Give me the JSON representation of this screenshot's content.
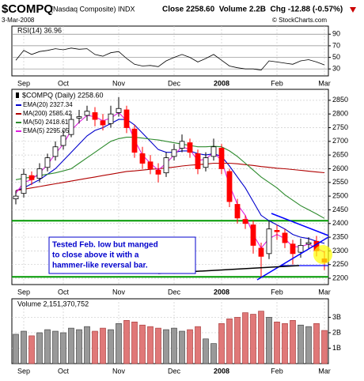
{
  "header": {
    "symbol": "$COMPQ",
    "name": "(Nasdaq Composite) INDX",
    "date": "3-Mar-2008",
    "quote": "Close 2258.60  Volume 2.2B  Chg -12.88 (-0.57%)",
    "source": "© StockCharts.com"
  },
  "chart_data": [
    {
      "type": "line",
      "title": "RSI(14) 36.96",
      "color": "#000000",
      "categories": [
        null,
        "Sep",
        null,
        null,
        null,
        null,
        "Oct",
        null,
        null,
        null,
        null,
        null,
        null,
        "Nov",
        null,
        null,
        null,
        null,
        null,
        null,
        "Dec",
        null,
        null,
        null,
        null,
        null,
        "2008",
        null,
        null,
        null,
        null,
        null,
        null,
        "Feb",
        null,
        null,
        null,
        null,
        null,
        "Mar"
      ],
      "values": [
        45,
        62,
        55,
        60,
        62,
        65,
        63,
        66,
        64,
        65,
        55,
        52,
        58,
        60,
        48,
        38,
        35,
        36,
        34,
        44,
        50,
        55,
        50,
        42,
        48,
        55,
        45,
        35,
        32,
        30,
        30,
        28,
        44,
        42,
        40,
        38,
        44,
        46,
        42,
        36.96
      ],
      "ylim": [
        18,
        104
      ],
      "yticks": [
        90,
        70,
        50,
        30
      ],
      "grid": true
    },
    {
      "type": "candlestick",
      "title": "$COMPQ (Daily) 2258.60",
      "colors": {
        "up": "#000000",
        "down": "#ff0000"
      },
      "categories": [
        null,
        "Sep",
        null,
        null,
        null,
        null,
        "Oct",
        null,
        null,
        null,
        null,
        null,
        null,
        "Nov",
        null,
        null,
        null,
        null,
        null,
        null,
        "Dec",
        null,
        null,
        null,
        null,
        null,
        "2008",
        null,
        null,
        null,
        null,
        null,
        null,
        "Feb",
        null,
        null,
        null,
        null,
        null,
        "Mar"
      ],
      "open": [
        2490,
        2510,
        2575,
        2565,
        2605,
        2645,
        2685,
        2725,
        2785,
        2795,
        2805,
        2775,
        2765,
        2805,
        2815,
        2745,
        2655,
        2625,
        2595,
        2585,
        2645,
        2675,
        2695,
        2655,
        2605,
        2645,
        2675,
        2590,
        2470,
        2415,
        2395,
        2310,
        2290,
        2375,
        2365,
        2325,
        2295,
        2325,
        2335,
        2271
      ],
      "high": [
        2520,
        2600,
        2590,
        2620,
        2655,
        2700,
        2740,
        2800,
        2815,
        2830,
        2825,
        2800,
        2830,
        2861,
        2830,
        2760,
        2680,
        2650,
        2620,
        2660,
        2690,
        2725,
        2710,
        2670,
        2660,
        2710,
        2690,
        2600,
        2490,
        2430,
        2410,
        2330,
        2410,
        2395,
        2380,
        2340,
        2345,
        2350,
        2355,
        2300
      ],
      "low": [
        2470,
        2495,
        2540,
        2550,
        2590,
        2630,
        2670,
        2715,
        2765,
        2775,
        2755,
        2740,
        2750,
        2790,
        2730,
        2640,
        2600,
        2580,
        2550,
        2570,
        2630,
        2660,
        2640,
        2580,
        2590,
        2630,
        2580,
        2460,
        2400,
        2380,
        2290,
        2202,
        2270,
        2340,
        2310,
        2250,
        2275,
        2305,
        2280,
        2230
      ],
      "close": [
        2500,
        2580,
        2560,
        2600,
        2640,
        2680,
        2720,
        2780,
        2790,
        2810,
        2780,
        2760,
        2800,
        2820,
        2750,
        2660,
        2620,
        2600,
        2580,
        2640,
        2670,
        2700,
        2660,
        2600,
        2640,
        2680,
        2600,
        2480,
        2420,
        2400,
        2320,
        2280,
        2380,
        2370,
        2330,
        2290,
        2320,
        2330,
        2300,
        2258.6
      ],
      "series": [
        {
          "name": "EMA(20) 2327.34",
          "color": "#0000cc",
          "values": [
            2520,
            2530,
            2545,
            2560,
            2580,
            2600,
            2630,
            2660,
            2690,
            2720,
            2740,
            2750,
            2765,
            2780,
            2780,
            2760,
            2730,
            2700,
            2670,
            2660,
            2660,
            2665,
            2665,
            2655,
            2650,
            2655,
            2645,
            2610,
            2570,
            2530,
            2480,
            2430,
            2410,
            2395,
            2380,
            2360,
            2350,
            2345,
            2335,
            2327.34
          ]
        },
        {
          "name": "MA(200) 2585.42",
          "color": "#b00000",
          "values": [
            2520,
            2525,
            2530,
            2535,
            2540,
            2545,
            2550,
            2555,
            2560,
            2565,
            2570,
            2575,
            2580,
            2585,
            2590,
            2592,
            2595,
            2598,
            2600,
            2603,
            2606,
            2610,
            2613,
            2615,
            2617,
            2620,
            2620,
            2620,
            2618,
            2615,
            2612,
            2608,
            2605,
            2602,
            2600,
            2597,
            2594,
            2591,
            2588,
            2585.42
          ]
        },
        {
          "name": "MA(50) 2418.61",
          "color": "#2e8b2e",
          "values": [
            2560,
            2565,
            2570,
            2575,
            2580,
            2585,
            2592,
            2600,
            2620,
            2640,
            2660,
            2680,
            2700,
            2710,
            2715,
            2715,
            2712,
            2708,
            2705,
            2700,
            2695,
            2690,
            2685,
            2680,
            2680,
            2682,
            2680,
            2665,
            2645,
            2620,
            2595,
            2570,
            2550,
            2530,
            2505,
            2485,
            2465,
            2450,
            2435,
            2418.61
          ]
        },
        {
          "name": "EMA(5) 2295.05",
          "color": "#e020e0",
          "values": [
            2510,
            2550,
            2560,
            2585,
            2615,
            2655,
            2690,
            2740,
            2770,
            2795,
            2790,
            2775,
            2785,
            2805,
            2775,
            2705,
            2650,
            2620,
            2595,
            2620,
            2650,
            2680,
            2670,
            2630,
            2635,
            2660,
            2630,
            2540,
            2470,
            2430,
            2360,
            2310,
            2345,
            2360,
            2345,
            2315,
            2315,
            2325,
            2310,
            2295.05
          ]
        }
      ],
      "hlines": [
        2410,
        2205
      ],
      "hline_color": "#009900",
      "annotation": [
        "Tested Feb. low but manged",
        "to close above it with a",
        "hammer-like reversal bar."
      ],
      "ylim": [
        2177,
        2890
      ],
      "yticks": [
        2200,
        2250,
        2300,
        2350,
        2400,
        2450,
        2500,
        2550,
        2600,
        2650,
        2700,
        2750,
        2800,
        2850
      ],
      "grid": true
    },
    {
      "type": "bar",
      "title": "Volume 2,151,370,752",
      "colors": {
        "up": "#999999",
        "down": "#e07878"
      },
      "categories": [
        null,
        "Sep",
        null,
        null,
        null,
        null,
        "Oct",
        null,
        null,
        null,
        null,
        null,
        null,
        "Nov",
        null,
        null,
        null,
        null,
        null,
        null,
        "Dec",
        null,
        null,
        null,
        null,
        null,
        "2008",
        null,
        null,
        null,
        null,
        null,
        null,
        "Feb",
        null,
        null,
        null,
        null,
        null,
        "Mar"
      ],
      "values": [
        1.9,
        2.1,
        1.8,
        2.0,
        2.2,
        2.1,
        2.0,
        2.3,
        2.2,
        2.4,
        2.1,
        2.3,
        2.2,
        2.6,
        2.8,
        2.7,
        2.5,
        2.4,
        2.3,
        2.2,
        2.3,
        2.1,
        2.2,
        2.4,
        1.6,
        1.3,
        2.6,
        2.9,
        3.0,
        3.3,
        3.2,
        3.4,
        3.0,
        2.7,
        2.6,
        2.8,
        2.5,
        2.4,
        2.6,
        2.15
      ],
      "ylim": [
        0,
        4.2
      ],
      "yticks": [
        {
          "value": 1,
          "label": "1B"
        },
        {
          "value": 2,
          "label": "2B"
        },
        {
          "value": 3,
          "label": "3B"
        }
      ],
      "grid": true
    }
  ]
}
